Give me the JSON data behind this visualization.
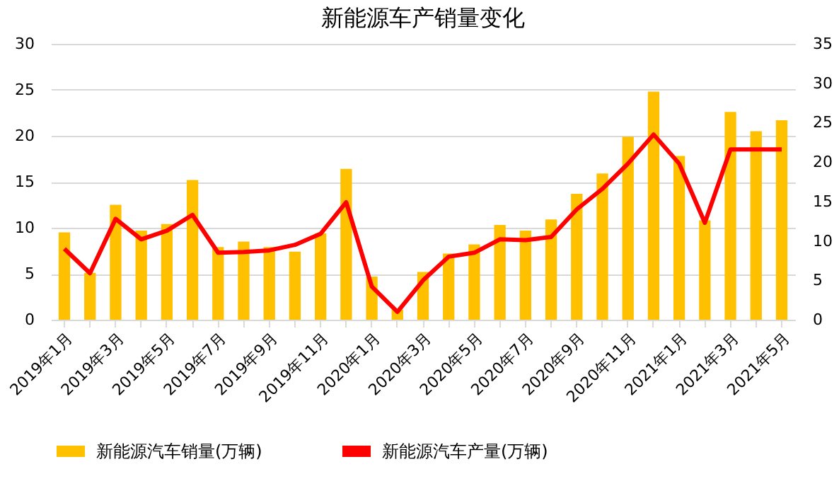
{
  "chart_data": {
    "type": "bar",
    "title": "新能源车产销量变化",
    "categories": [
      "2019年1月",
      null,
      "2019年3月",
      null,
      "2019年5月",
      null,
      "2019年7月",
      null,
      "2019年9月",
      null,
      "2019年11月",
      null,
      "2020年1月",
      null,
      "2020年3月",
      null,
      "2020年5月",
      null,
      "2020年7月",
      null,
      "2020年9月",
      null,
      "2020年11月",
      null,
      "2021年1月",
      null,
      "2021年3月",
      null,
      "2021年5月"
    ],
    "series": [
      {
        "name": "新能源汽车销量(万辆)",
        "color": "#ffc000",
        "values": [
          9.5,
          5.1,
          12.5,
          9.7,
          10.4,
          15.2,
          7.9,
          8.5,
          7.9,
          7.4,
          9.4,
          16.4,
          4.7,
          1.1,
          5.2,
          7.2,
          8.2,
          10.3,
          9.7,
          10.9,
          13.7,
          15.9,
          19.9,
          24.8,
          17.8,
          10.8,
          22.6,
          20.5,
          21.7
        ]
      },
      {
        "name": "新能源汽车产量(万辆)",
        "type": "line",
        "axis": "y2",
        "color": "#ff0000",
        "values": [
          9.0,
          5.9,
          12.8,
          10.2,
          11.3,
          13.3,
          8.5,
          8.6,
          8.8,
          9.5,
          10.9,
          14.9,
          4.2,
          1.0,
          5.0,
          8.0,
          8.5,
          10.2,
          10.1,
          10.5,
          14.0,
          16.6,
          19.8,
          23.5,
          19.8,
          12.3,
          21.6,
          21.6,
          21.6
        ]
      }
    ],
    "ylim": [
      0,
      30
    ],
    "yticks": [
      0,
      5,
      10,
      15,
      20,
      25,
      30
    ],
    "y2lim": [
      0,
      35
    ],
    "y2ticks": [
      0,
      5,
      10,
      15,
      20,
      25,
      30,
      35
    ],
    "grid": "y",
    "legend": "bottom",
    "marker": "none",
    "line_style": "solid"
  }
}
